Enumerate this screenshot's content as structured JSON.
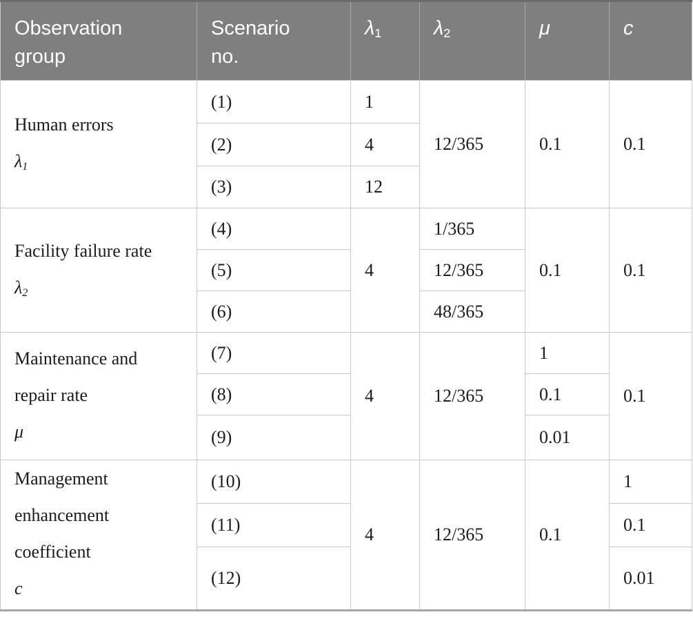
{
  "colors": {
    "header_bg": "#7f7f7f",
    "header_text": "#ffffff",
    "grid_border": "#c9c9c9",
    "header_separator": "#a8a8a8",
    "top_border": "#6b6b6b",
    "bottom_border": "#a6a6a6",
    "body_text": "#1c1c1c"
  },
  "header": {
    "observation_group_lines": [
      "Observation",
      "group"
    ],
    "scenario_no_lines": [
      "Scenario",
      "no."
    ],
    "lambda1": {
      "base": "λ",
      "sub": "1"
    },
    "lambda2": {
      "base": "λ",
      "sub": "2"
    },
    "mu": "μ",
    "c": "c"
  },
  "groups": [
    {
      "label_lines": [
        "Human errors"
      ],
      "symbol": "λ",
      "symbol_sub": "1",
      "scenarios": [
        "(1)",
        "(2)",
        "(3)"
      ],
      "lambda1_values": [
        "1",
        "4",
        "12"
      ],
      "lambda2": "12/365",
      "mu": "0.1",
      "c": "0.1"
    },
    {
      "label_lines": [
        "Facility failure rate"
      ],
      "symbol": "λ",
      "symbol_sub": "2",
      "scenarios": [
        "(4)",
        "(5)",
        "(6)"
      ],
      "lambda1": "4",
      "lambda2_values": [
        "1/365",
        "12/365",
        "48/365"
      ],
      "mu": "0.1",
      "c": "0.1"
    },
    {
      "label_lines": [
        "Maintenance and",
        "repair rate"
      ],
      "symbol": "μ",
      "symbol_sub": "",
      "scenarios": [
        "(7)",
        "(8)",
        "(9)"
      ],
      "lambda1": "4",
      "lambda2": "12/365",
      "mu_values": [
        "1",
        "0.1",
        "0.01"
      ],
      "c": "0.1"
    },
    {
      "label_lines": [
        "Management",
        "enhancement",
        "coefficient"
      ],
      "symbol": "c",
      "symbol_sub": "",
      "scenarios": [
        "(10)",
        "(11)",
        "(12)"
      ],
      "lambda1": "4",
      "lambda2": "12/365",
      "mu": "0.1",
      "c_values": [
        "1",
        "0.1",
        "0.01"
      ]
    }
  ]
}
